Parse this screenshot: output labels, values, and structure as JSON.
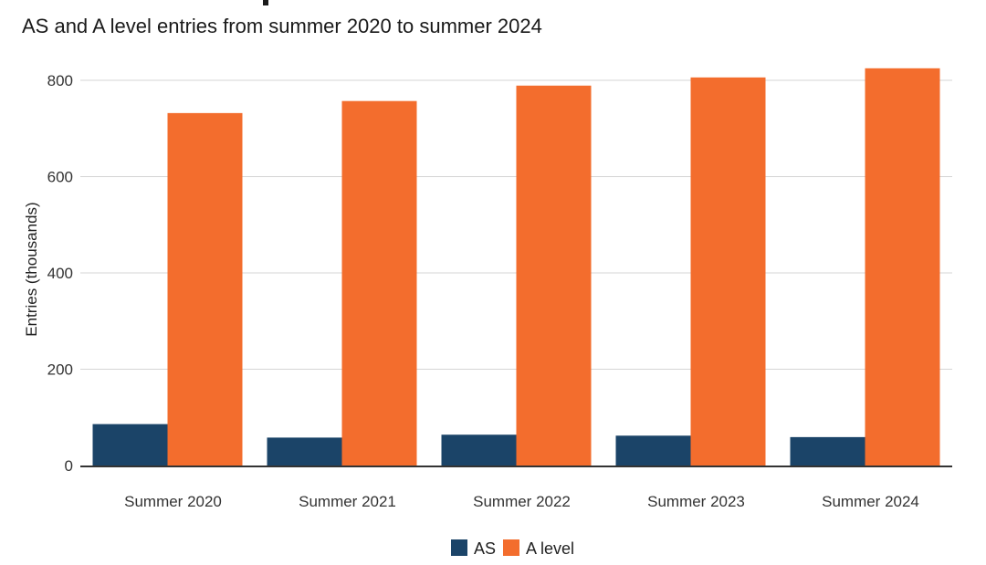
{
  "chart_data": {
    "type": "bar",
    "title": "AS and A level entries from summer 2020 to summer 2024",
    "xlabel": "",
    "ylabel": "Entries (thousands)",
    "ylim": [
      0,
      850
    ],
    "yticks": [
      0,
      200,
      400,
      600,
      800
    ],
    "categories": [
      "Summer 2020",
      "Summer 2021",
      "Summer 2022",
      "Summer 2023",
      "Summer 2024"
    ],
    "series": [
      {
        "name": "AS",
        "color": "#1b4468",
        "values": [
          86,
          58,
          64,
          62,
          59
        ]
      },
      {
        "name": "A level",
        "color": "#f36d2d",
        "values": [
          732,
          757,
          789,
          806,
          825
        ]
      }
    ],
    "legend_position": "bottom-center",
    "grid": true
  }
}
